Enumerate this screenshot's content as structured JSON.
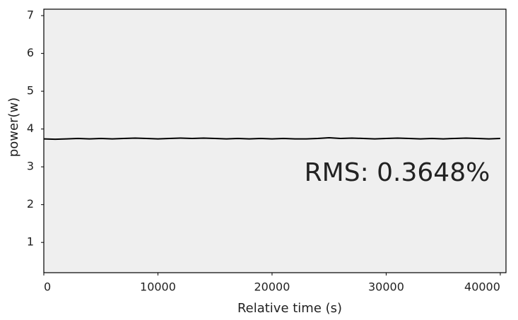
{
  "chart_data": {
    "type": "line",
    "x": [
      0,
      1000,
      2000,
      3000,
      4000,
      5000,
      6000,
      7000,
      8000,
      9000,
      10000,
      11000,
      12000,
      13000,
      14000,
      15000,
      16000,
      17000,
      18000,
      19000,
      20000,
      21000,
      22000,
      23000,
      24000,
      25000,
      26000,
      27000,
      28000,
      29000,
      30000,
      31000,
      32000,
      33000,
      34000,
      35000,
      36000,
      37000,
      38000,
      39000,
      40000
    ],
    "values": [
      3.74,
      3.73,
      3.74,
      3.75,
      3.74,
      3.75,
      3.74,
      3.75,
      3.76,
      3.75,
      3.74,
      3.75,
      3.76,
      3.75,
      3.76,
      3.75,
      3.74,
      3.75,
      3.74,
      3.75,
      3.74,
      3.75,
      3.74,
      3.74,
      3.75,
      3.77,
      3.75,
      3.76,
      3.75,
      3.74,
      3.75,
      3.76,
      3.75,
      3.74,
      3.75,
      3.74,
      3.75,
      3.76,
      3.75,
      3.74,
      3.75
    ],
    "color": "#000000",
    "xlim": [
      0,
      40500
    ],
    "xticks": [
      0,
      10000,
      20000,
      30000,
      40000
    ],
    "ylim": [
      0.2,
      7.17
    ],
    "yticks": [
      1,
      2,
      3,
      4,
      5,
      6,
      7
    ],
    "xlabel": "Relative time (s)",
    "ylabel": "power(w)",
    "annotation": "RMS: 0.3648%",
    "annotation_color": "#1f4e9c"
  }
}
